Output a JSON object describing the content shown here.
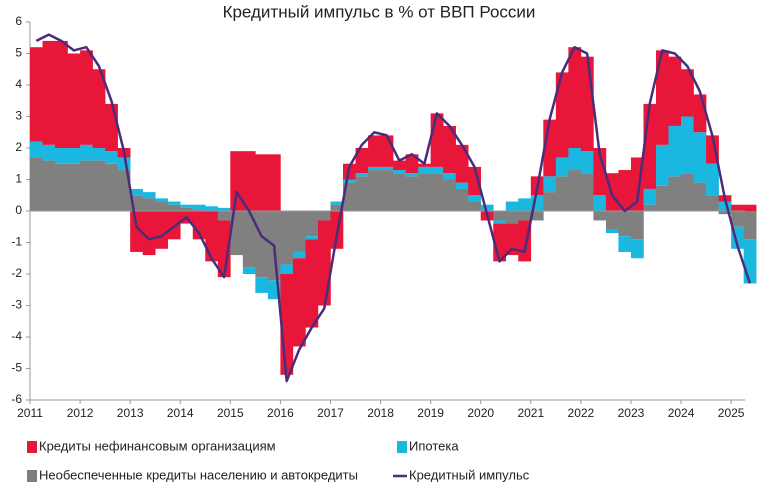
{
  "chart_data": {
    "type": "bar",
    "stacked": true,
    "title": "Кредитный импульс в % от ВВП России",
    "categories": [
      "2011",
      null,
      null,
      null,
      "2012",
      null,
      null,
      null,
      "2013",
      null,
      null,
      null,
      "2014",
      null,
      null,
      null,
      "2015",
      null,
      null,
      null,
      "2016",
      null,
      null,
      null,
      "2017",
      null,
      null,
      null,
      "2018",
      null,
      null,
      null,
      "2019",
      null,
      null,
      null,
      "2020",
      null,
      null,
      null,
      "2021",
      null,
      null,
      null,
      "2022",
      null,
      null,
      null,
      "2023",
      null,
      null,
      null,
      "2024",
      null,
      null,
      null,
      "2025",
      null
    ],
    "ylim": [
      -6,
      6
    ],
    "yticks": [
      -6,
      -5,
      -4,
      -3,
      -2,
      -1,
      0,
      1,
      2,
      3,
      4,
      5,
      6
    ],
    "grid": false,
    "series": [
      {
        "name": "Кредиты нефинансовым организациям",
        "color": "#e8173a",
        "values": [
          3.0,
          3.3,
          3.4,
          3.0,
          3.0,
          2.5,
          1.5,
          0.3,
          -1.3,
          -1.4,
          -1.2,
          -0.9,
          -0.4,
          -0.9,
          -1.6,
          -1.8,
          1.9,
          1.9,
          1.8,
          1.8,
          -3.2,
          -2.8,
          -2.8,
          -2.7,
          -1.2,
          0.5,
          0.8,
          1.0,
          1.0,
          0.3,
          0.6,
          0.1,
          1.7,
          1.5,
          1.2,
          0.9,
          -0.3,
          -1.2,
          -1.0,
          -1.3,
          0.6,
          1.8,
          2.7,
          3.2,
          3.0,
          1.5,
          1.2,
          1.3,
          1.7,
          2.7,
          3.0,
          2.2,
          1.5,
          1.2,
          0.9,
          0.2,
          0.2,
          0.2
        ]
      },
      {
        "name": "Ипотека",
        "color": "#1ab8e0",
        "values": [
          0.5,
          0.5,
          0.5,
          0.5,
          0.5,
          0.4,
          0.4,
          0.4,
          0.2,
          0.2,
          0.1,
          0.1,
          0.1,
          0.15,
          0.15,
          0.1,
          0,
          -0.2,
          -0.5,
          -0.6,
          -0.3,
          -0.2,
          -0.1,
          0,
          0.1,
          0.1,
          0.1,
          0.1,
          0.1,
          0.1,
          0.1,
          0.2,
          0.2,
          0.2,
          0.2,
          0.2,
          0.2,
          -0.1,
          0.3,
          0.4,
          0.5,
          0.5,
          0.6,
          0.7,
          0.7,
          0.5,
          -0.1,
          -0.5,
          -0.6,
          0.5,
          1.3,
          1.6,
          1.8,
          1.6,
          1.0,
          0.3,
          -0.7,
          -1.4
        ]
      },
      {
        "name": "Необеспеченные кредиты населению и автокредиты",
        "color": "#808080",
        "values": [
          1.7,
          1.6,
          1.5,
          1.5,
          1.6,
          1.6,
          1.5,
          1.3,
          0.5,
          0.4,
          0.3,
          0.2,
          0.1,
          0.05,
          0,
          -0.3,
          -1.4,
          -1.8,
          -2.1,
          -2.2,
          -1.7,
          -1.3,
          -0.8,
          -0.3,
          0.2,
          0.9,
          1.1,
          1.3,
          1.3,
          1.2,
          1.1,
          1.2,
          1.2,
          1.0,
          0.7,
          0.3,
          0,
          -0.3,
          -0.4,
          -0.3,
          -0.3,
          0.6,
          1.1,
          1.3,
          1.2,
          -0.3,
          -0.6,
          -0.8,
          -0.9,
          0.2,
          0.8,
          1.1,
          1.2,
          0.9,
          0.5,
          -0.1,
          -0.5,
          -0.9
        ]
      },
      {
        "name": "Кредитный импульс",
        "color": "#4b2c7a",
        "type": "line",
        "values": [
          5.4,
          5.6,
          5.4,
          5.1,
          5.2,
          4.6,
          3.5,
          1.9,
          -0.5,
          -0.9,
          -0.8,
          -0.5,
          -0.2,
          -0.7,
          -1.5,
          -2.1,
          0.6,
          0.0,
          -0.8,
          -1.1,
          -5.4,
          -4.4,
          -3.7,
          -3.1,
          -0.8,
          1.4,
          2.1,
          2.5,
          2.4,
          1.6,
          1.8,
          1.5,
          3.1,
          2.7,
          2.1,
          1.4,
          -0.1,
          -1.6,
          -1.2,
          -1.3,
          0.7,
          2.9,
          4.4,
          5.2,
          5.0,
          1.8,
          0.5,
          0.0,
          0.3,
          3.4,
          5.1,
          5.0,
          4.6,
          3.8,
          2.4,
          0.4,
          -1.1,
          -2.3
        ]
      }
    ]
  }
}
